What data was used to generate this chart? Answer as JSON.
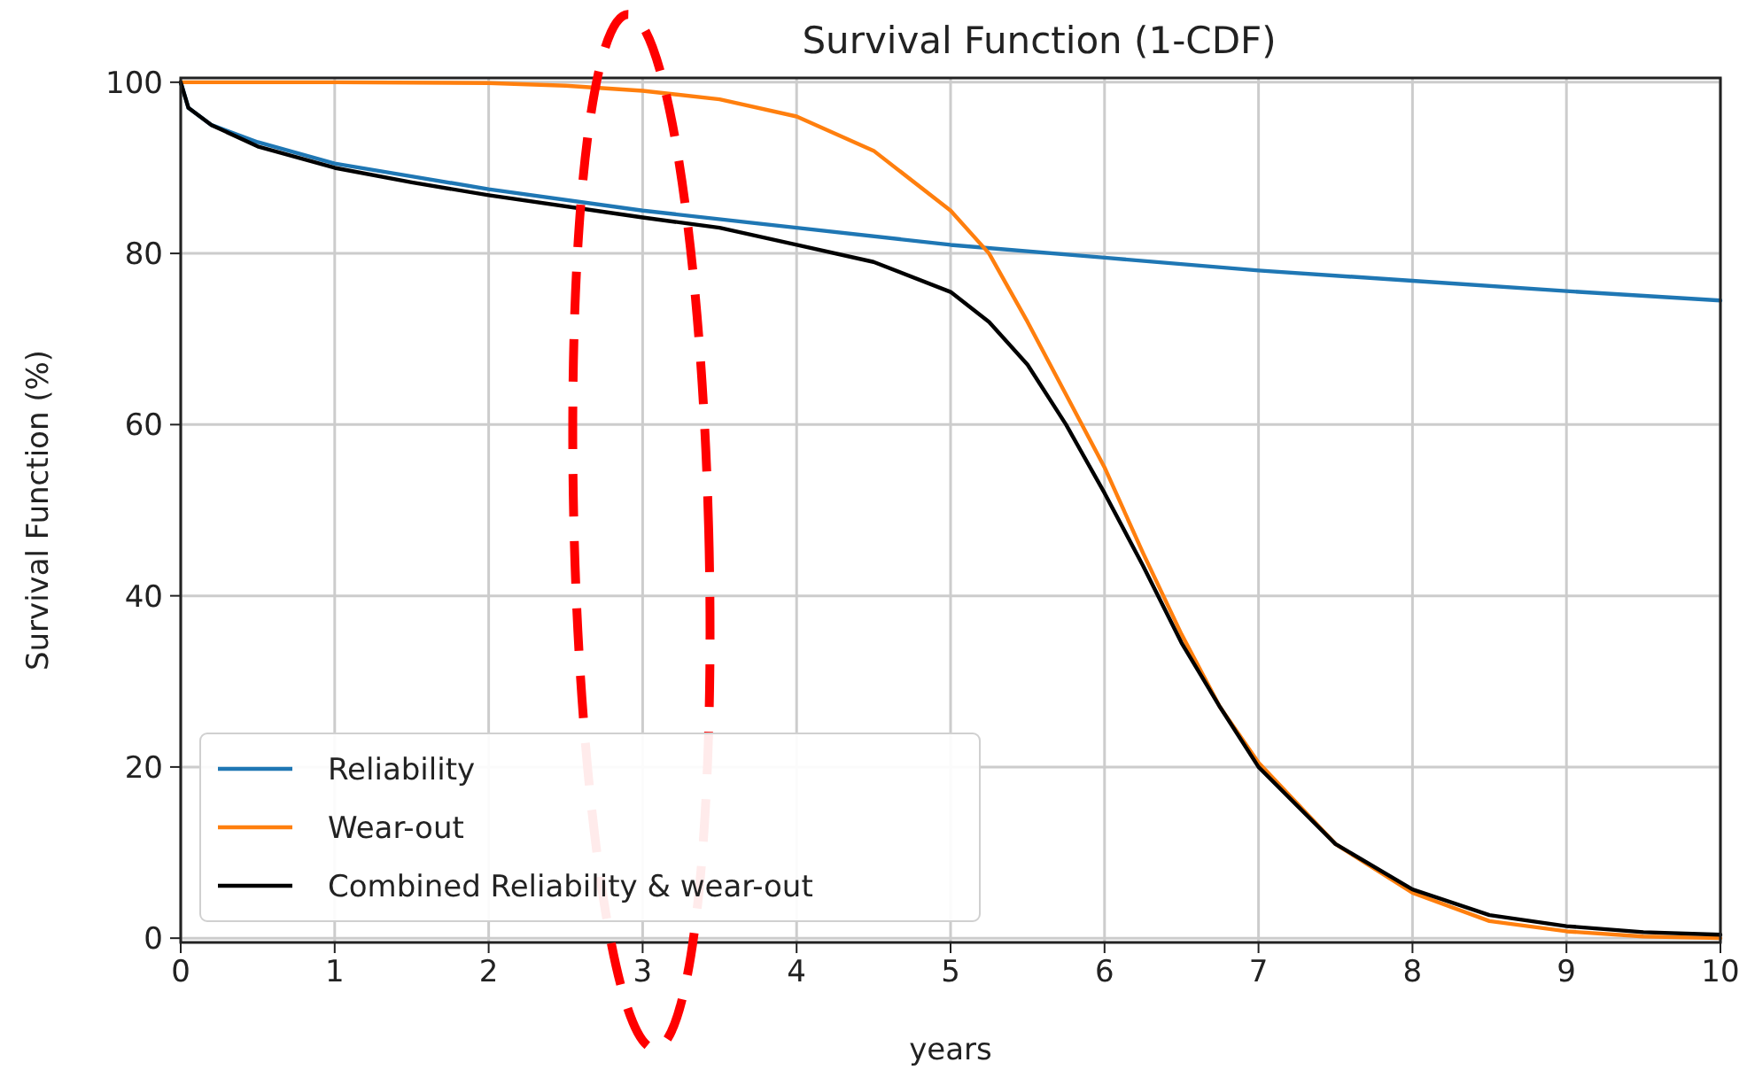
{
  "chart_data": {
    "type": "line",
    "title": "Survival Function (1-CDF)",
    "xlabel": "years",
    "ylabel": "Survival Function (%)",
    "xlim": [
      0,
      10
    ],
    "xticks": [
      0,
      1,
      2,
      3,
      4,
      5,
      6,
      7,
      8,
      9,
      10
    ],
    "ylim": [
      -0.5,
      100.5
    ],
    "yticks": [
      0,
      20,
      40,
      60,
      80,
      100
    ],
    "grid": true,
    "legend": "bottom left",
    "series": [
      {
        "name": "Reliability",
        "color": "#1f77b4",
        "x": [
          0,
          0.05,
          0.2,
          0.5,
          1,
          1.5,
          2,
          3,
          4,
          5,
          6,
          7,
          8,
          9,
          10
        ],
        "values": [
          100,
          97,
          95,
          93,
          90.5,
          89,
          87.5,
          85,
          83,
          81,
          79.5,
          78,
          76.8,
          75.6,
          74.5
        ]
      },
      {
        "name": "Wear-out",
        "color": "#ff7f0e",
        "x": [
          0,
          1,
          2,
          2.5,
          3,
          3.5,
          4,
          4.5,
          5,
          5.25,
          5.5,
          5.75,
          6,
          6.25,
          6.5,
          6.75,
          7,
          7.5,
          8,
          8.5,
          9,
          9.5,
          10
        ],
        "values": [
          100,
          100,
          99.9,
          99.6,
          99,
          98,
          96,
          92,
          85,
          80,
          72,
          63.5,
          55,
          45,
          35.5,
          27,
          20.5,
          11,
          5.3,
          2.0,
          0.8,
          0.2,
          0
        ]
      },
      {
        "name": "Combined Reliability & wear-out",
        "color": "#000000",
        "x": [
          0,
          0.05,
          0.2,
          0.5,
          1,
          1.5,
          2,
          3,
          3.5,
          4,
          4.5,
          5,
          5.25,
          5.5,
          5.75,
          6,
          6.25,
          6.5,
          6.75,
          7,
          7.5,
          8,
          8.5,
          9,
          9.5,
          10
        ],
        "values": [
          100,
          97,
          95,
          92.5,
          90,
          88.3,
          86.8,
          84.2,
          83,
          81,
          79,
          75.5,
          72,
          67,
          60,
          52,
          43.5,
          34.5,
          27,
          20,
          11,
          5.7,
          2.7,
          1.4,
          0.7,
          0.4
        ]
      }
    ]
  }
}
